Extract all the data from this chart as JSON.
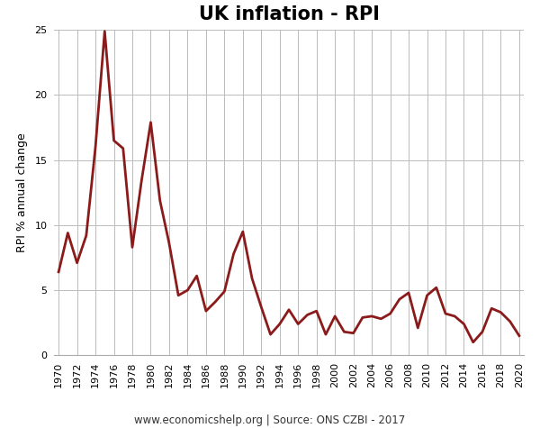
{
  "title": "UK inflation - RPI",
  "ylabel": "RPI % annual change",
  "footnote": "www.economicshelp.org | Source: ONS CZBI - 2017",
  "line_color": "#8B1A1A",
  "background_color": "#ffffff",
  "ylim": [
    0,
    25
  ],
  "yticks": [
    0,
    5,
    10,
    15,
    20,
    25
  ],
  "years": [
    1970,
    1971,
    1972,
    1973,
    1974,
    1975,
    1976,
    1977,
    1978,
    1979,
    1980,
    1981,
    1982,
    1983,
    1984,
    1985,
    1986,
    1987,
    1988,
    1989,
    1990,
    1991,
    1992,
    1993,
    1994,
    1995,
    1996,
    1997,
    1998,
    1999,
    2000,
    2001,
    2002,
    2003,
    2004,
    2005,
    2006,
    2007,
    2008,
    2009,
    2010,
    2011,
    2012,
    2013,
    2014,
    2015,
    2016,
    2017,
    2018,
    2019,
    2020
  ],
  "values": [
    6.4,
    9.4,
    7.1,
    9.2,
    16.0,
    24.9,
    16.5,
    15.9,
    8.3,
    13.4,
    17.9,
    11.9,
    8.6,
    4.6,
    5.0,
    6.1,
    3.4,
    4.1,
    4.9,
    7.8,
    9.5,
    5.9,
    3.7,
    1.6,
    2.4,
    3.5,
    2.4,
    3.1,
    3.4,
    1.6,
    3.0,
    1.8,
    1.7,
    2.9,
    3.0,
    2.8,
    3.2,
    4.3,
    4.8,
    2.1,
    4.6,
    5.2,
    3.2,
    3.0,
    2.4,
    1.0,
    1.8,
    3.6,
    3.3,
    2.6,
    1.5
  ],
  "xtick_years": [
    1970,
    1972,
    1974,
    1976,
    1978,
    1980,
    1982,
    1984,
    1986,
    1988,
    1990,
    1992,
    1994,
    1996,
    1998,
    2000,
    2002,
    2004,
    2006,
    2008,
    2010,
    2012,
    2014,
    2016,
    2018,
    2020
  ],
  "title_fontsize": 15,
  "ylabel_fontsize": 9,
  "tick_fontsize": 8,
  "footnote_fontsize": 8.5,
  "line_width": 2.0,
  "grid_color": "#bbbbbb",
  "grid_linewidth": 0.7,
  "spine_color": "#aaaaaa"
}
